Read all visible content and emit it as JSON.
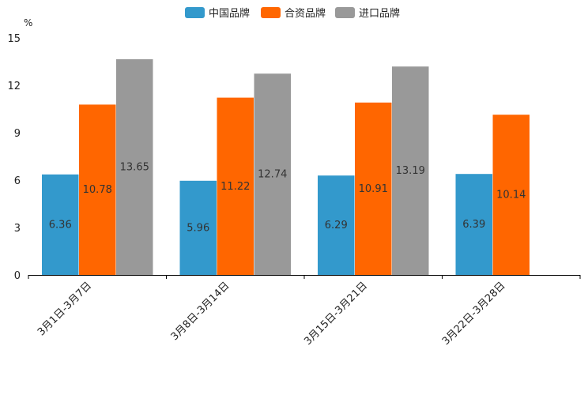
{
  "chart_data": {
    "type": "bar",
    "title": "",
    "xlabel": "",
    "ylabel": "%",
    "ylim": [
      0,
      15
    ],
    "yticks": [
      0,
      3,
      6,
      9,
      12,
      15
    ],
    "grid": false,
    "legend_position": "top-center",
    "categories": [
      "3月1日-3月7日",
      "3月8日-3月14日",
      "3月15日-3月21日",
      "3月22日-3月28日"
    ],
    "series": [
      {
        "name": "中国品牌",
        "color": "#3399cc",
        "values": [
          6.36,
          5.96,
          6.29,
          6.39
        ]
      },
      {
        "name": "合资品牌",
        "color": "#ff6600",
        "values": [
          10.78,
          11.22,
          10.91,
          10.14
        ]
      },
      {
        "name": "进口品牌",
        "color": "#999999",
        "values": [
          13.65,
          12.74,
          13.19,
          null
        ]
      }
    ]
  }
}
